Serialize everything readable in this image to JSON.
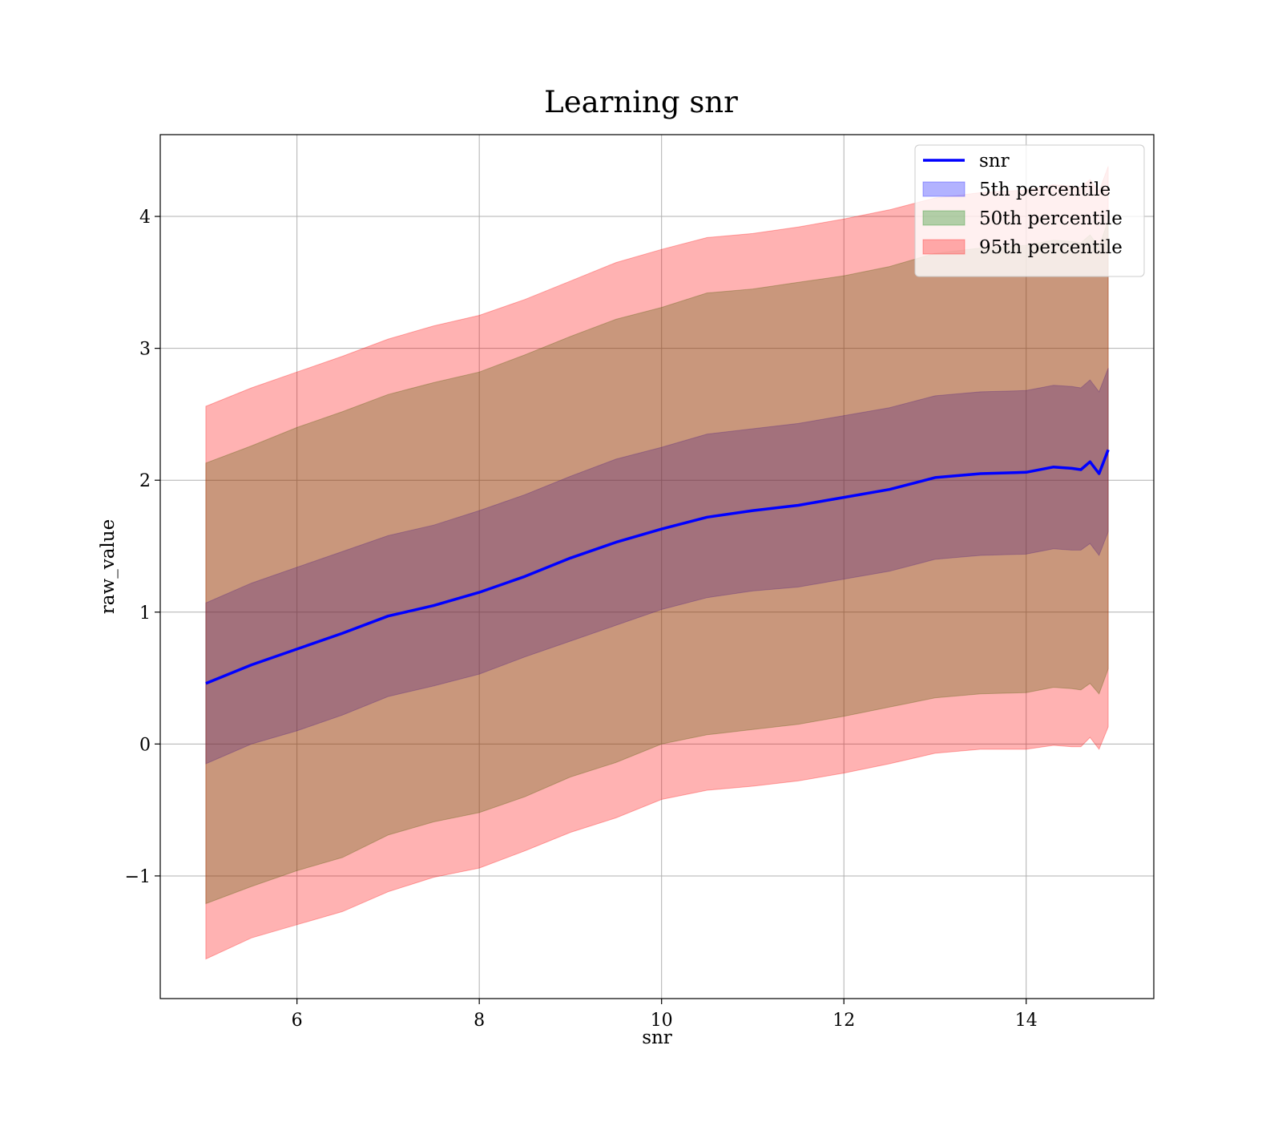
{
  "chart_data": {
    "type": "area",
    "title": "Learning snr",
    "xlabel": "snr",
    "ylabel": "raw_value",
    "xlim": [
      4.5,
      15.4
    ],
    "ylim": [
      -1.93,
      4.62
    ],
    "x_ticks": [
      6,
      8,
      10,
      12,
      14
    ],
    "x_tick_labels": [
      "6",
      "8",
      "10",
      "12",
      "14"
    ],
    "y_ticks": [
      -1,
      0,
      1,
      2,
      3,
      4
    ],
    "y_tick_labels": [
      "−1",
      "0",
      "1",
      "2",
      "3",
      "4"
    ],
    "grid": true,
    "legend_position": "top-right",
    "x": [
      5.0,
      5.5,
      6.0,
      6.5,
      7.0,
      7.5,
      8.0,
      8.5,
      9.0,
      9.5,
      10.0,
      10.5,
      11.0,
      11.5,
      12.0,
      12.5,
      13.0,
      13.5,
      14.0,
      14.3,
      14.5,
      14.6,
      14.7,
      14.8,
      14.9
    ],
    "series": [
      {
        "name": "snr",
        "kind": "line",
        "color": "#0000ff",
        "values": [
          0.46,
          0.6,
          0.72,
          0.84,
          0.97,
          1.05,
          1.15,
          1.27,
          1.41,
          1.53,
          1.63,
          1.72,
          1.77,
          1.81,
          1.87,
          1.93,
          2.02,
          2.05,
          2.06,
          2.1,
          2.09,
          2.08,
          2.14,
          2.05,
          2.23
        ]
      },
      {
        "name": "5th percentile",
        "kind": "band",
        "color": "#0000ff",
        "alpha": 0.3,
        "lower": [
          -0.15,
          0.0,
          0.1,
          0.22,
          0.36,
          0.44,
          0.53,
          0.66,
          0.78,
          0.9,
          1.02,
          1.11,
          1.16,
          1.19,
          1.25,
          1.31,
          1.4,
          1.43,
          1.44,
          1.48,
          1.47,
          1.47,
          1.52,
          1.43,
          1.61
        ],
        "upper": [
          1.07,
          1.22,
          1.34,
          1.46,
          1.58,
          1.66,
          1.77,
          1.89,
          2.03,
          2.16,
          2.25,
          2.35,
          2.39,
          2.43,
          2.49,
          2.55,
          2.64,
          2.67,
          2.68,
          2.72,
          2.71,
          2.7,
          2.76,
          2.67,
          2.85
        ]
      },
      {
        "name": "50th percentile",
        "kind": "band",
        "color": "#008000",
        "alpha": 0.3,
        "lower": [
          -1.21,
          -1.08,
          -0.96,
          -0.86,
          -0.69,
          -0.59,
          -0.52,
          -0.4,
          -0.25,
          -0.14,
          -0.0,
          0.07,
          0.11,
          0.15,
          0.21,
          0.28,
          0.35,
          0.38,
          0.39,
          0.43,
          0.42,
          0.41,
          0.46,
          0.38,
          0.57
        ],
        "upper": [
          2.13,
          2.26,
          2.4,
          2.52,
          2.65,
          2.74,
          2.82,
          2.95,
          3.09,
          3.22,
          3.31,
          3.42,
          3.45,
          3.5,
          3.55,
          3.62,
          3.72,
          3.76,
          3.78,
          3.82,
          3.81,
          3.8,
          3.86,
          3.77,
          3.97
        ]
      },
      {
        "name": "95th percentile",
        "kind": "band",
        "color": "#ff0000",
        "alpha": 0.3,
        "lower": [
          -1.63,
          -1.47,
          -1.37,
          -1.27,
          -1.12,
          -1.01,
          -0.94,
          -0.81,
          -0.67,
          -0.56,
          -0.42,
          -0.35,
          -0.32,
          -0.28,
          -0.22,
          -0.15,
          -0.07,
          -0.04,
          -0.04,
          -0.01,
          -0.02,
          -0.02,
          0.05,
          -0.04,
          0.13
        ],
        "upper": [
          2.56,
          2.7,
          2.82,
          2.94,
          3.07,
          3.17,
          3.25,
          3.37,
          3.51,
          3.65,
          3.75,
          3.84,
          3.87,
          3.92,
          3.98,
          4.05,
          4.14,
          4.18,
          4.2,
          4.24,
          4.23,
          4.22,
          4.28,
          4.19,
          4.38
        ]
      }
    ]
  }
}
